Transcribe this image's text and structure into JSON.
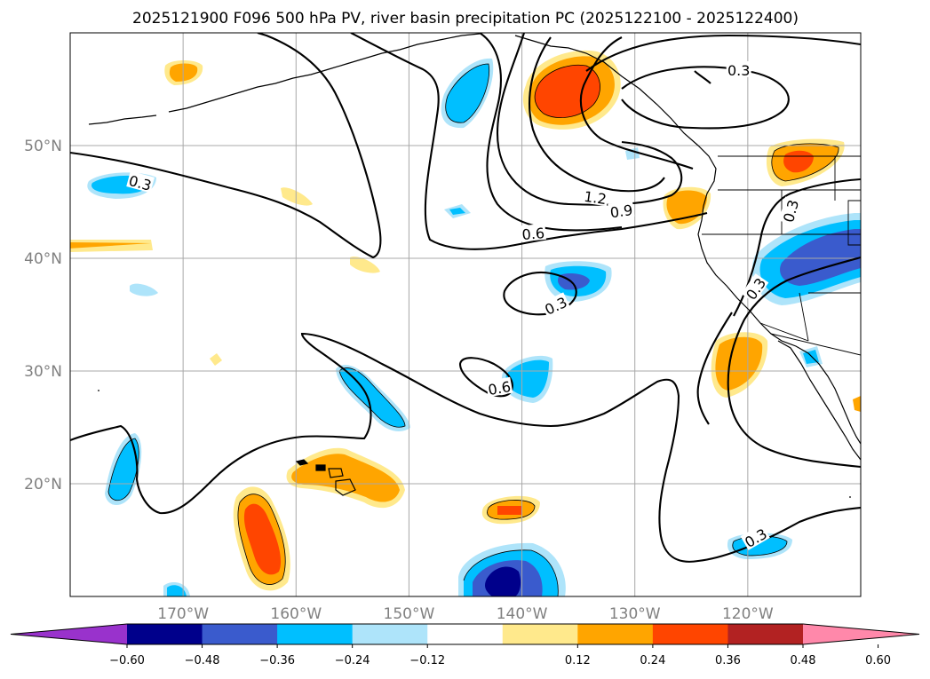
{
  "title": "2025121900 F096 500 hPa PV, river basin precipitation PC (2025122100 - 2025122400)",
  "axes": {
    "lon_range": [
      -180,
      -110
    ],
    "lat_range": [
      10,
      60
    ],
    "x_ticks": [
      "170°W",
      "160°W",
      "150°W",
      "140°W",
      "130°W",
      "120°W"
    ],
    "x_tick_values": [
      -170,
      -160,
      -150,
      -140,
      -130,
      -120
    ],
    "y_ticks": [
      "50°N",
      "40°N",
      "30°N",
      "20°N"
    ],
    "y_tick_values": [
      50,
      40,
      30,
      20
    ],
    "grid": true
  },
  "contour_labels": [
    {
      "text": "0.3",
      "lon": -173.8,
      "lat": 46.7,
      "rot": 15
    },
    {
      "text": "0.3",
      "lon": -120.8,
      "lat": 56.7,
      "rot": 0
    },
    {
      "text": "1.2",
      "lon": -133.5,
      "lat": 45.4,
      "rot": 8
    },
    {
      "text": "0.9",
      "lon": -131.2,
      "lat": 44.2,
      "rot": -8
    },
    {
      "text": "0.6",
      "lon": -139.0,
      "lat": 42.2,
      "rot": -5
    },
    {
      "text": "0.3",
      "lon": -116.2,
      "lat": 44.2,
      "rot": -75
    },
    {
      "text": "0.3",
      "lon": -119.3,
      "lat": 37.3,
      "rot": -55
    },
    {
      "text": "0.3",
      "lon": -137.0,
      "lat": 35.8,
      "rot": -25
    },
    {
      "text": "0.6",
      "lon": -142.0,
      "lat": 28.5,
      "rot": -10
    },
    {
      "text": "0.3",
      "lon": -119.3,
      "lat": 15.2,
      "rot": -30
    }
  ],
  "colorbar": {
    "ticks": [
      "−0.60",
      "−0.48",
      "−0.36",
      "−0.24",
      "−0.12",
      "0.12",
      "0.24",
      "0.36",
      "0.48",
      "0.60"
    ],
    "colors": [
      "#9932cc",
      "#00008b",
      "#3a5bcd",
      "#00bfff",
      "#aee4fa",
      "#ffffff",
      "#ffe98c",
      "#ffa500",
      "#ff4500",
      "#b22222",
      "#ff88aa"
    ]
  },
  "fill_colors": {
    "neg3": "#00008b",
    "neg2": "#3a5bcd",
    "neg1": "#00bfff",
    "neg0": "#aee4fa",
    "pos0": "#ffe98c",
    "pos1": "#ffa500",
    "pos2": "#ff4500"
  }
}
